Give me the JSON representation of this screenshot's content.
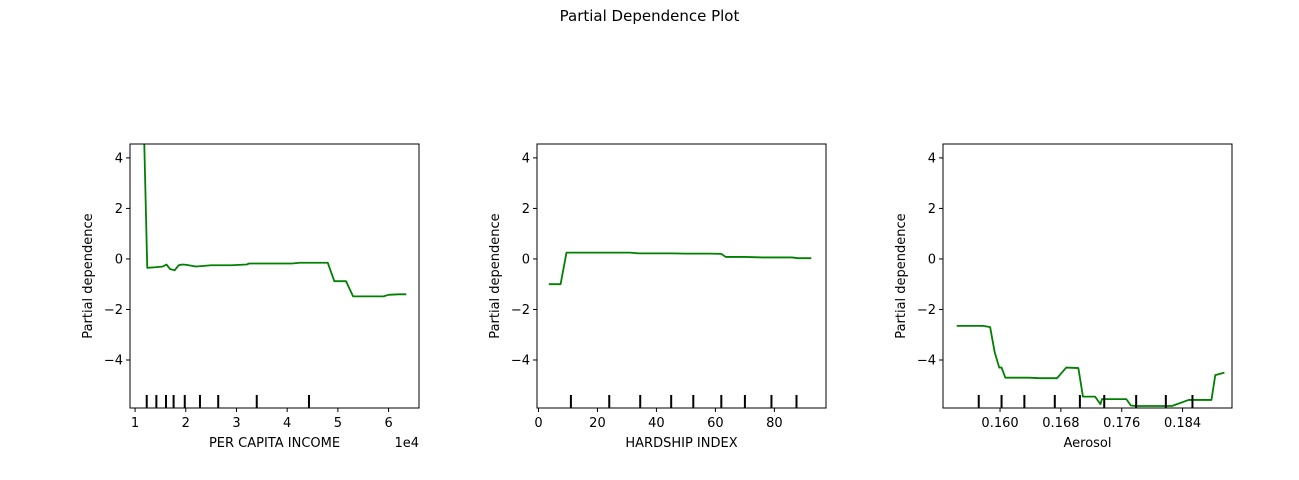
{
  "figure": {
    "suptitle": "Partial Dependence Plot"
  },
  "chart_data": [
    {
      "type": "line",
      "xlabel": "PER CAPITA INCOME",
      "ylabel": "Partial dependence",
      "x_offset_text": "1e4",
      "xlim": [
        0.9,
        6.6
      ],
      "ylim": [
        -5.9,
        4.55
      ],
      "x_ticks": [
        1,
        2,
        3,
        4,
        5,
        6
      ],
      "x_tick_labels": [
        "1",
        "2",
        "3",
        "4",
        "5",
        "6"
      ],
      "y_ticks": [
        -4,
        -2,
        0,
        2,
        4
      ],
      "y_tick_labels": [
        "−4",
        "−2",
        "0",
        "2",
        "4"
      ],
      "line_color": "#008000",
      "deciles": [
        1.23,
        1.42,
        1.61,
        1.76,
        1.98,
        2.28,
        2.64,
        3.4,
        4.43
      ],
      "x": [
        1.18,
        1.24,
        1.4,
        1.55,
        1.62,
        1.69,
        1.78,
        1.86,
        1.93,
        2.0,
        2.2,
        2.33,
        2.5,
        2.9,
        3.2,
        3.25,
        4.1,
        4.25,
        4.8,
        4.93,
        5.16,
        5.3,
        5.9,
        6.0,
        6.2,
        6.35
      ],
      "y": [
        4.7,
        -0.35,
        -0.33,
        -0.3,
        -0.22,
        -0.4,
        -0.45,
        -0.25,
        -0.22,
        -0.23,
        -0.3,
        -0.28,
        -0.25,
        -0.25,
        -0.22,
        -0.18,
        -0.18,
        -0.15,
        -0.15,
        -0.88,
        -0.88,
        -1.48,
        -1.48,
        -1.42,
        -1.4,
        -1.4
      ]
    },
    {
      "type": "line",
      "xlabel": "HARDSHIP INDEX",
      "ylabel": "Partial dependence",
      "xlim": [
        -0.5,
        97.5
      ],
      "ylim": [
        -5.9,
        4.55
      ],
      "x_ticks": [
        0,
        20,
        40,
        60,
        80
      ],
      "x_tick_labels": [
        "0",
        "20",
        "40",
        "60",
        "80"
      ],
      "y_ticks": [
        -4,
        -2,
        0,
        2,
        4
      ],
      "y_tick_labels": [
        "−4",
        "−2",
        "0",
        "2",
        "4"
      ],
      "line_color": "#008000",
      "deciles": [
        11,
        24,
        34.5,
        45,
        52.5,
        62,
        70,
        79,
        87.5
      ],
      "x": [
        3.5,
        7.5,
        9.5,
        11.5,
        17,
        22,
        31,
        34,
        45,
        50,
        58,
        62,
        63.5,
        70,
        76,
        86,
        88,
        92.5
      ],
      "y": [
        -1.0,
        -1.0,
        0.25,
        0.25,
        0.25,
        0.25,
        0.25,
        0.22,
        0.22,
        0.21,
        0.21,
        0.2,
        0.08,
        0.08,
        0.06,
        0.06,
        0.03,
        0.03
      ]
    },
    {
      "type": "line",
      "xlabel": "Aerosol",
      "ylabel": "Partial dependence",
      "xlim": [
        0.1525,
        0.1905
      ],
      "ylim": [
        -5.9,
        4.55
      ],
      "x_ticks": [
        0.16,
        0.168,
        0.176,
        0.184
      ],
      "x_tick_labels": [
        "0.160",
        "0.168",
        "0.176",
        "0.184"
      ],
      "y_ticks": [
        -4,
        -2,
        0,
        2,
        4
      ],
      "y_tick_labels": [
        "−4",
        "−2",
        "0",
        "2",
        "4"
      ],
      "line_color": "#008000",
      "deciles": [
        0.1572,
        0.1602,
        0.1632,
        0.1672,
        0.1705,
        0.1737,
        0.1779,
        0.1818,
        0.1853
      ],
      "x": [
        0.1543,
        0.1578,
        0.1587,
        0.1593,
        0.1599,
        0.1602,
        0.1607,
        0.1612,
        0.1638,
        0.1652,
        0.1675,
        0.1687,
        0.1703,
        0.1709,
        0.1725,
        0.1732,
        0.1734,
        0.1766,
        0.1772,
        0.1779,
        0.1802,
        0.1826,
        0.1848,
        0.1853,
        0.1878,
        0.1883,
        0.1895
      ],
      "y": [
        -2.65,
        -2.65,
        -2.7,
        -3.7,
        -4.3,
        -4.3,
        -4.7,
        -4.7,
        -4.7,
        -4.72,
        -4.72,
        -4.3,
        -4.32,
        -5.45,
        -5.45,
        -5.75,
        -5.55,
        -5.55,
        -5.8,
        -5.82,
        -5.82,
        -5.82,
        -5.58,
        -5.58,
        -5.58,
        -4.6,
        -4.5
      ]
    }
  ]
}
